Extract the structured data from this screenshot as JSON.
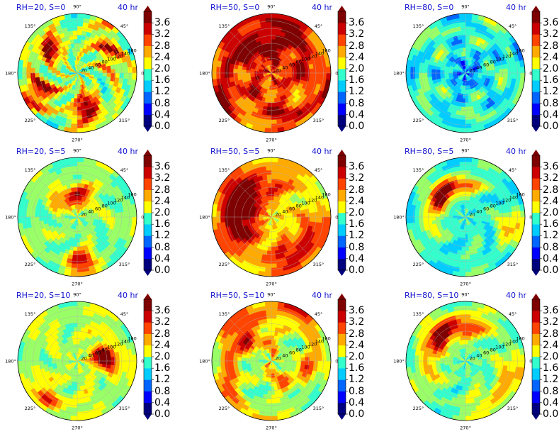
{
  "chart_data": {
    "type": "heatmap",
    "layout": "3x3 grid of polar contour plots, each with its own colorbar",
    "time_label": "40 hr",
    "angle_ticks": [
      "0°",
      "45°",
      "90°",
      "135°",
      "180°",
      "225°",
      "270°",
      "315°"
    ],
    "radius_ticks": [
      "20",
      "40",
      "60",
      "80",
      "100",
      "120",
      "140",
      "160"
    ],
    "colorbar_ticks": [
      "0.0",
      "0.4",
      "0.8",
      "1.2",
      "1.6",
      "2.0",
      "2.4",
      "2.8",
      "3.2",
      "3.6"
    ],
    "colorbar_range": [
      0.0,
      4.0
    ],
    "colormap": "jet",
    "colormap_stops": [
      "#00007f",
      "#0000ff",
      "#0066ff",
      "#00ccff",
      "#33ffcc",
      "#99ff66",
      "#ffff00",
      "#ffaa00",
      "#ff4400",
      "#cc0000",
      "#7f0000"
    ],
    "panels": [
      {
        "title": "RH=20, S=0",
        "time": "40 hr",
        "base_level": 1.7,
        "pattern": "scattered-red-cells"
      },
      {
        "title": "RH=50, S=0",
        "time": "40 hr",
        "base_level": 2.9,
        "pattern": "broad-red-orange-spiral"
      },
      {
        "title": "RH=80, S=0",
        "time": "40 hr",
        "base_level": 1.6,
        "pattern": "cyan-spiral-bands"
      },
      {
        "title": "RH=20, S=5",
        "time": "40 hr",
        "base_level": 1.9,
        "pattern": "red-band-north-west"
      },
      {
        "title": "RH=50, S=5",
        "time": "40 hr",
        "base_level": 2.4,
        "pattern": "dark-red-crescent-west"
      },
      {
        "title": "RH=80, S=5",
        "time": "40 hr",
        "base_level": 1.6,
        "pattern": "dark-red-arc-west"
      },
      {
        "title": "RH=20, S=10",
        "time": "40 hr",
        "base_level": 2.1,
        "pattern": "dark-red-cluster-east"
      },
      {
        "title": "RH=50, S=10",
        "time": "40 hr",
        "base_level": 2.0,
        "pattern": "red-spiral-arms"
      },
      {
        "title": "RH=80, S=10",
        "time": "40 hr",
        "base_level": 1.8,
        "pattern": "red-arc-north-west"
      }
    ]
  }
}
